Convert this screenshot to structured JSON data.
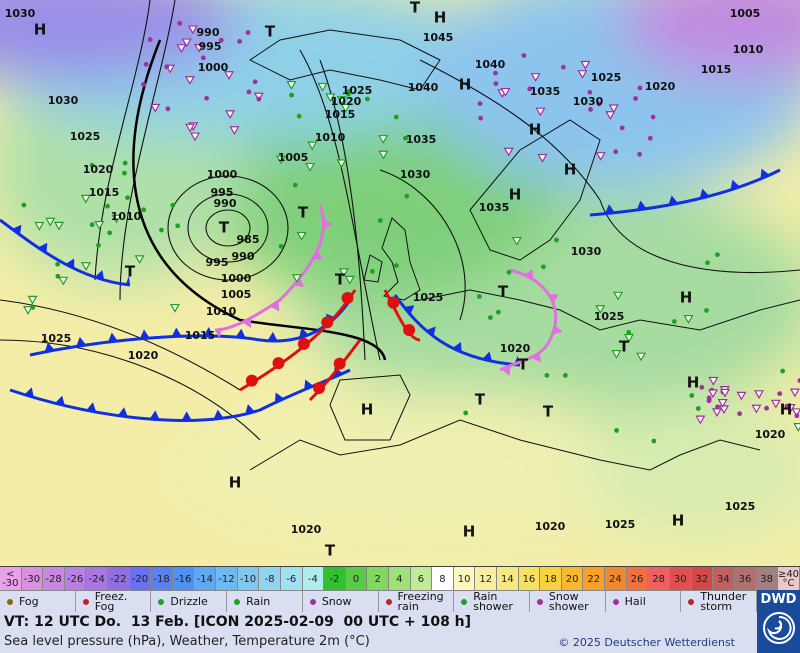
{
  "map": {
    "labels": [
      "1030",
      "1005",
      "H",
      "T",
      "990",
      "995",
      "1000",
      "1045",
      "1040",
      "1010",
      "1015",
      "1030",
      "1025",
      "1020",
      "1015",
      "1040",
      "H",
      "1035",
      "1030",
      "1025",
      "1020",
      "1025",
      "1010",
      "1035",
      "1005",
      "1030",
      "1020",
      "1000",
      "1015",
      "995",
      "990",
      "1010",
      "1035",
      "T",
      "T",
      "985",
      "990",
      "995",
      "1000",
      "1005",
      "1030",
      "1025",
      "1010",
      "1015",
      "1025",
      "1020",
      "1020",
      "1025",
      "H",
      "H",
      "H",
      "H",
      "T",
      "T",
      "T",
      "T",
      "H",
      "T",
      "T",
      "H",
      "T",
      "H",
      "1020",
      "H",
      "1020",
      "T",
      "H",
      "1020",
      "1025",
      "H",
      "1025",
      "H",
      "T"
    ]
  },
  "color_scale": {
    "under": "< -30",
    "values": [
      -30,
      -28,
      -26,
      -24,
      -22,
      -20,
      -18,
      -16,
      -14,
      -12,
      -10,
      -8,
      -6,
      -4,
      -2,
      0,
      2,
      4,
      6,
      8,
      10,
      12,
      14,
      16,
      18,
      20,
      22,
      24,
      26,
      28,
      30,
      32,
      34,
      36,
      38
    ],
    "over": "≥40 °C"
  },
  "legend": [
    "Fog",
    "Freez. Fog",
    "Drizzle",
    "Rain",
    "Snow",
    "Freezing rain",
    "Rain shower",
    "Snow shower",
    "Hail",
    "Thunder storm"
  ],
  "footer": {
    "valid_time": "VT: 12 UTC Do.  13 Feb. [ICON 2025-02-09  00 UTC + 108 h]",
    "description": "Sea level pressure (hPa), Weather, Temperature 2m (°C)",
    "copyright": "© 2025 Deutscher Wetterdienst",
    "logo": "DWD"
  }
}
